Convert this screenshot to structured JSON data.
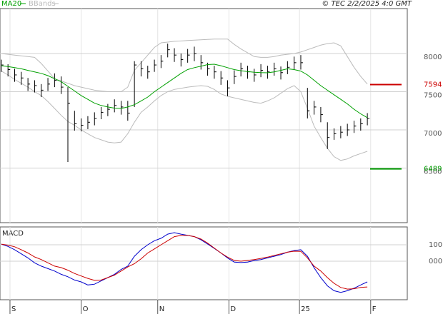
{
  "chart_data": [
    {
      "type": "hlc",
      "source": "© TEC 2/2/2025 4:0 GMT",
      "x": [
        0,
        1,
        2,
        3,
        4,
        5,
        6,
        7,
        8,
        9,
        10,
        11,
        12,
        13,
        14,
        15,
        16,
        17,
        18,
        19,
        20,
        21,
        22,
        23,
        24,
        25,
        26,
        27,
        28,
        29,
        30,
        31,
        32,
        33,
        34,
        35,
        36,
        37,
        38,
        39,
        40,
        41,
        42,
        43,
        44,
        45,
        46,
        47,
        48,
        49,
        50,
        51,
        52,
        53,
        54,
        55
      ],
      "xlim": [
        -0.2,
        61
      ],
      "xticks": [
        {
          "value": 1.3,
          "label": "S"
        },
        {
          "value": 12,
          "label": "O"
        },
        {
          "value": 23.5,
          "label": "N"
        },
        {
          "value": 34.2,
          "label": "D"
        },
        {
          "value": 44.8,
          "label": "25"
        },
        {
          "value": 55.5,
          "label": "F"
        }
      ],
      "ylim": [
        5785,
        8589
      ],
      "yticks": [
        6500,
        7000,
        7500,
        8000
      ],
      "bar_color": "#000000",
      "high": [
        7920,
        7860,
        7800,
        7760,
        7680,
        7650,
        7600,
        7680,
        7740,
        7700,
        7560,
        7250,
        7150,
        7180,
        7230,
        7300,
        7340,
        7400,
        7380,
        7380,
        7900,
        7900,
        7840,
        7920,
        7980,
        8130,
        8070,
        8000,
        8060,
        8090,
        7980,
        7880,
        7840,
        7770,
        7650,
        7780,
        7880,
        7840,
        7800,
        7860,
        7840,
        7880,
        7830,
        7900,
        7960,
        7980,
        7550,
        7380,
        7300,
        7100,
        7020,
        7050,
        7080,
        7120,
        7150,
        7220
      ],
      "low": [
        7760,
        7700,
        7630,
        7590,
        7510,
        7490,
        7430,
        7510,
        7560,
        7470,
        6580,
        6990,
        6980,
        7010,
        7060,
        7140,
        7180,
        7230,
        7200,
        7120,
        7300,
        7700,
        7670,
        7760,
        7810,
        7950,
        7890,
        7830,
        7880,
        7900,
        7790,
        7710,
        7670,
        7590,
        7440,
        7600,
        7700,
        7670,
        7630,
        7690,
        7670,
        7710,
        7660,
        7730,
        7790,
        7790,
        7150,
        7200,
        7100,
        6750,
        6870,
        6890,
        6920,
        6960,
        6990,
        7060
      ],
      "close": [
        7850,
        7790,
        7720,
        7680,
        7600,
        7580,
        7520,
        7600,
        7650,
        7560,
        7350,
        7080,
        7060,
        7100,
        7150,
        7230,
        7270,
        7320,
        7300,
        7220,
        7850,
        7800,
        7760,
        7850,
        7900,
        8050,
        7980,
        7920,
        7980,
        8000,
        7880,
        7800,
        7760,
        7680,
        7550,
        7700,
        7800,
        7760,
        7720,
        7780,
        7760,
        7800,
        7750,
        7820,
        7880,
        7880,
        7250,
        7300,
        7200,
        6900,
        6950,
        6970,
        7000,
        7050,
        7080,
        7150
      ],
      "series": [
        {
          "name": "MA20",
          "color": "#00a000",
          "values": [
            7840,
            7830,
            7815,
            7800,
            7780,
            7760,
            7740,
            7710,
            7670,
            7630,
            7570,
            7510,
            7450,
            7400,
            7350,
            7320,
            7300,
            7285,
            7280,
            7300,
            7330,
            7380,
            7430,
            7500,
            7560,
            7620,
            7680,
            7740,
            7790,
            7815,
            7835,
            7855,
            7860,
            7840,
            7815,
            7790,
            7775,
            7765,
            7755,
            7750,
            7748,
            7760,
            7780,
            7800,
            7790,
            7770,
            7720,
            7650,
            7580,
            7520,
            7460,
            7400,
            7340,
            7270,
            7210,
            7160
          ]
        },
        {
          "name": "BBands",
          "color": "#bbbbbb",
          "upper": [
            8000,
            7990,
            7980,
            7970,
            7960,
            7950,
            7870,
            7770,
            7670,
            7640,
            7610,
            7580,
            7560,
            7540,
            7520,
            7510,
            7500,
            7500,
            7500,
            7560,
            7780,
            7880,
            7980,
            8080,
            8140,
            8150,
            8160,
            8165,
            8170,
            8175,
            8180,
            8185,
            8190,
            8190,
            8190,
            8120,
            8060,
            8010,
            7960,
            7950,
            7950,
            7960,
            7980,
            7990,
            8000,
            8020,
            8050,
            8080,
            8110,
            8130,
            8140,
            8100,
            7960,
            7820,
            7700,
            7600
          ],
          "lower": [
            7770,
            7720,
            7660,
            7610,
            7560,
            7500,
            7450,
            7370,
            7280,
            7190,
            7110,
            7060,
            7000,
            6950,
            6900,
            6870,
            6840,
            6830,
            6840,
            6950,
            7100,
            7230,
            7300,
            7380,
            7450,
            7500,
            7530,
            7545,
            7560,
            7570,
            7580,
            7570,
            7530,
            7470,
            7440,
            7420,
            7400,
            7380,
            7360,
            7350,
            7380,
            7420,
            7480,
            7540,
            7580,
            7500,
            7280,
            7050,
            6900,
            6760,
            6650,
            6600,
            6620,
            6660,
            6690,
            6720
          ]
        }
      ],
      "levels": [
        {
          "value": 7594,
          "color": "#cc0000"
        },
        {
          "value": 6489,
          "color": "#009900"
        }
      ]
    },
    {
      "type": "line",
      "title": "MACD",
      "ylim": [
        -235,
        209
      ],
      "yticks": [
        {
          "value": 100,
          "label": "100"
        },
        {
          "value": 0,
          "label": "000"
        }
      ],
      "series": [
        {
          "color": "#0000cc",
          "values": [
            104,
            90,
            70,
            45,
            20,
            -10,
            -30,
            -45,
            -60,
            -80,
            -95,
            -115,
            -126,
            -145,
            -140,
            -120,
            -100,
            -80,
            -50,
            -30,
            30,
            70,
            100,
            125,
            140,
            165,
            174,
            165,
            158,
            150,
            130,
            105,
            78,
            50,
            20,
            -5,
            -8,
            -5,
            4,
            10,
            20,
            30,
            40,
            55,
            65,
            70,
            30,
            -40,
            -100,
            -150,
            -180,
            -190,
            -180,
            -165,
            -145,
            -126
          ]
        },
        {
          "color": "#cc0000",
          "values": [
            104,
            98,
            88,
            70,
            50,
            26,
            10,
            -10,
            -30,
            -39,
            -55,
            -75,
            -90,
            -105,
            -117,
            -115,
            -100,
            -85,
            -60,
            -35,
            -15,
            15,
            50,
            75,
            100,
            125,
            150,
            157,
            157,
            150,
            135,
            110,
            80,
            50,
            25,
            5,
            0,
            5,
            10,
            17,
            25,
            35,
            45,
            55,
            61,
            60,
            20,
            -30,
            -60,
            -100,
            -135,
            -160,
            -170,
            -168,
            -160,
            -157
          ]
        }
      ]
    }
  ]
}
